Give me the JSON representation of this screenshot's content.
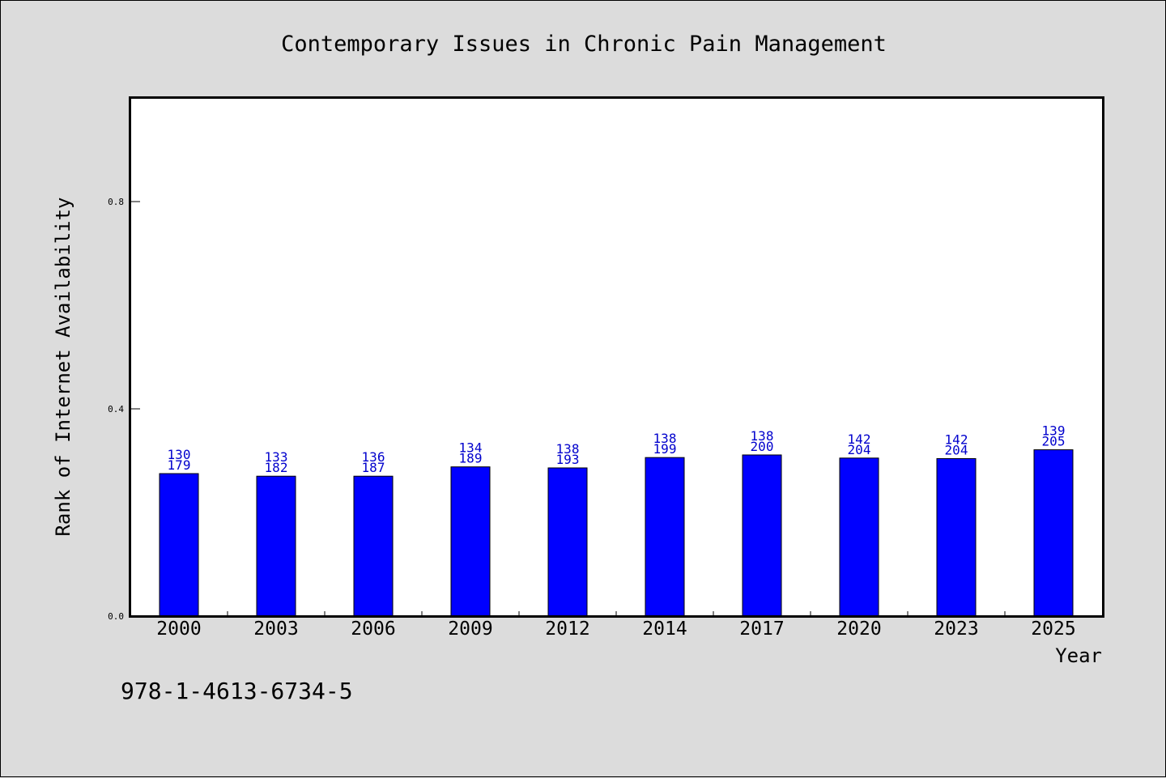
{
  "chart_data": {
    "type": "bar",
    "title": "Contemporary Issues in Chronic Pain Management",
    "xlabel": "Year",
    "ylabel": "Rank of Internet Availability",
    "categories": [
      "2000",
      "2003",
      "2006",
      "2009",
      "2012",
      "2014",
      "2017",
      "2020",
      "2023",
      "2025"
    ],
    "values": [
      0.275,
      0.27,
      0.27,
      0.288,
      0.286,
      0.306,
      0.311,
      0.305,
      0.304,
      0.321
    ],
    "bar_label_top": [
      "130",
      "133",
      "136",
      "134",
      "138",
      "138",
      "138",
      "142",
      "142",
      "139"
    ],
    "bar_label_bottom": [
      "179",
      "182",
      "187",
      "189",
      "193",
      "199",
      "200",
      "204",
      "204",
      "205"
    ],
    "yticks": [
      "0.0",
      "0.4",
      "0.8"
    ],
    "ytick_values": [
      0.0,
      0.4,
      0.8
    ],
    "ylim": [
      0.0,
      1.0
    ],
    "grid": false,
    "bar_color": "#0000ff",
    "label_color": "#0000cd"
  },
  "footer": {
    "isbn": "978-1-4613-6734-5"
  }
}
